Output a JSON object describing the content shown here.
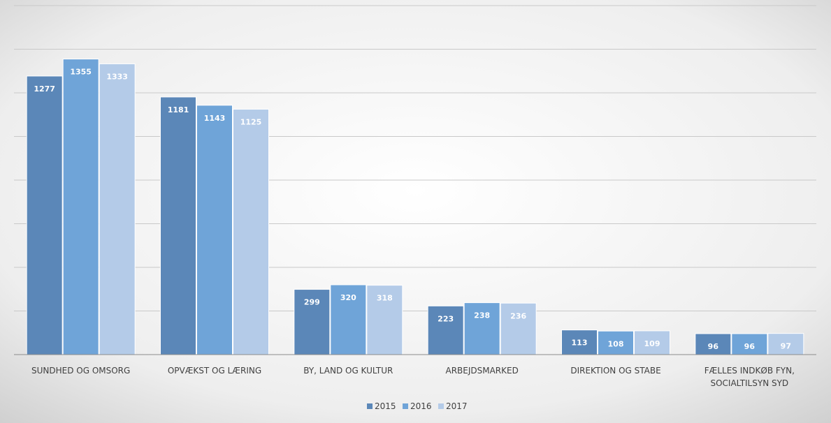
{
  "chart_data": {
    "type": "bar",
    "categories": [
      [
        "SUNDHED OG OMSORG"
      ],
      [
        "OPVÆKST OG LÆRING"
      ],
      [
        "BY, LAND OG KULTUR"
      ],
      [
        "ARBEJDSMARKED"
      ],
      [
        "DIREKTION OG STABE"
      ],
      [
        "FÆLLES INDKØB FYN,",
        "SOCIALTILSYN SYD"
      ]
    ],
    "series": [
      {
        "name": "2015",
        "color": "#5b87b8",
        "values": [
          1277,
          1181,
          299,
          223,
          113,
          96
        ]
      },
      {
        "name": "2016",
        "color": "#6fa4d8",
        "values": [
          1355,
          1143,
          320,
          238,
          108,
          96
        ]
      },
      {
        "name": "2017",
        "color": "#b4cbe8",
        "values": [
          1333,
          1125,
          318,
          236,
          109,
          97
        ]
      }
    ],
    "ylim": [
      0,
      1600
    ],
    "gridlines": true,
    "legend_position": "bottom",
    "title": "",
    "xlabel": "",
    "ylabel": ""
  }
}
